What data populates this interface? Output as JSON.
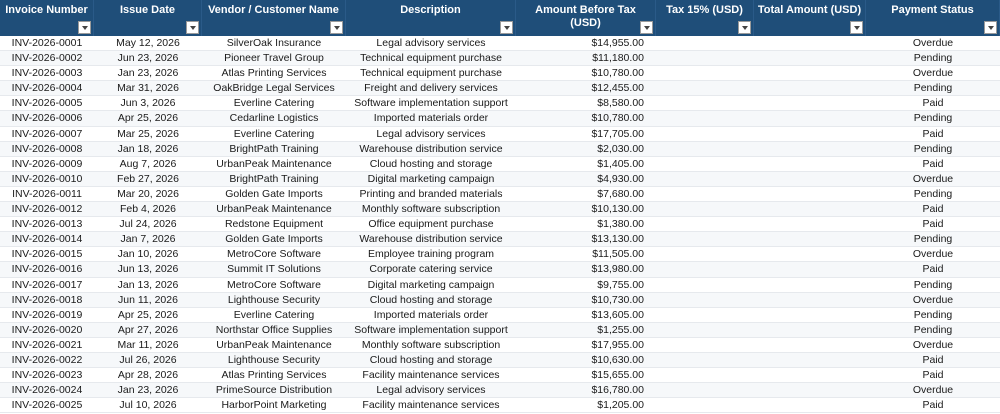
{
  "headers": [
    "Invoice Number",
    "Issue Date",
    "Vendor / Customer Name",
    "Description",
    "Amount Before Tax (USD)",
    "Tax 15% (USD)",
    "Total Amount (USD)",
    "Payment Status"
  ],
  "rows": [
    [
      "INV-2026-0001",
      "May 12, 2026",
      "SilverOak Insurance",
      "Legal advisory services",
      "$14,955.00",
      "",
      "",
      "Overdue"
    ],
    [
      "INV-2026-0002",
      "Jun 23, 2026",
      "Pioneer Travel Group",
      "Technical equipment purchase",
      "$11,180.00",
      "",
      "",
      "Pending"
    ],
    [
      "INV-2026-0003",
      "Jan 23, 2026",
      "Atlas Printing Services",
      "Technical equipment purchase",
      "$10,780.00",
      "",
      "",
      "Overdue"
    ],
    [
      "INV-2026-0004",
      "Mar 31, 2026",
      "OakBridge Legal Services",
      "Freight and delivery services",
      "$12,455.00",
      "",
      "",
      "Pending"
    ],
    [
      "INV-2026-0005",
      "Jun 3, 2026",
      "Everline Catering",
      "Software implementation support",
      "$8,580.00",
      "",
      "",
      "Paid"
    ],
    [
      "INV-2026-0006",
      "Apr 25, 2026",
      "Cedarline Logistics",
      "Imported materials order",
      "$10,780.00",
      "",
      "",
      "Pending"
    ],
    [
      "INV-2026-0007",
      "Mar 25, 2026",
      "Everline Catering",
      "Legal advisory services",
      "$17,705.00",
      "",
      "",
      "Paid"
    ],
    [
      "INV-2026-0008",
      "Jan 18, 2026",
      "BrightPath Training",
      "Warehouse distribution service",
      "$2,030.00",
      "",
      "",
      "Pending"
    ],
    [
      "INV-2026-0009",
      "Aug 7, 2026",
      "UrbanPeak Maintenance",
      "Cloud hosting and storage",
      "$1,405.00",
      "",
      "",
      "Paid"
    ],
    [
      "INV-2026-0010",
      "Feb 27, 2026",
      "BrightPath Training",
      "Digital marketing campaign",
      "$4,930.00",
      "",
      "",
      "Overdue"
    ],
    [
      "INV-2026-0011",
      "Mar 20, 2026",
      "Golden Gate Imports",
      "Printing and branded materials",
      "$7,680.00",
      "",
      "",
      "Pending"
    ],
    [
      "INV-2026-0012",
      "Feb 4, 2026",
      "UrbanPeak Maintenance",
      "Monthly software subscription",
      "$10,130.00",
      "",
      "",
      "Paid"
    ],
    [
      "INV-2026-0013",
      "Jul 24, 2026",
      "Redstone Equipment",
      "Office equipment purchase",
      "$1,380.00",
      "",
      "",
      "Paid"
    ],
    [
      "INV-2026-0014",
      "Jan 7, 2026",
      "Golden Gate Imports",
      "Warehouse distribution service",
      "$13,130.00",
      "",
      "",
      "Pending"
    ],
    [
      "INV-2026-0015",
      "Jan 10, 2026",
      "MetroCore Software",
      "Employee training program",
      "$11,505.00",
      "",
      "",
      "Overdue"
    ],
    [
      "INV-2026-0016",
      "Jun 13, 2026",
      "Summit IT Solutions",
      "Corporate catering service",
      "$13,980.00",
      "",
      "",
      "Paid"
    ],
    [
      "INV-2026-0017",
      "Jan 13, 2026",
      "MetroCore Software",
      "Digital marketing campaign",
      "$9,755.00",
      "",
      "",
      "Pending"
    ],
    [
      "INV-2026-0018",
      "Jun 11, 2026",
      "Lighthouse Security",
      "Cloud hosting and storage",
      "$10,730.00",
      "",
      "",
      "Overdue"
    ],
    [
      "INV-2026-0019",
      "Apr 25, 2026",
      "Everline Catering",
      "Imported materials order",
      "$13,605.00",
      "",
      "",
      "Pending"
    ],
    [
      "INV-2026-0020",
      "Apr 27, 2026",
      "Northstar Office Supplies",
      "Software implementation support",
      "$1,255.00",
      "",
      "",
      "Pending"
    ],
    [
      "INV-2026-0021",
      "Mar 11, 2026",
      "UrbanPeak Maintenance",
      "Monthly software subscription",
      "$17,955.00",
      "",
      "",
      "Overdue"
    ],
    [
      "INV-2026-0022",
      "Jul 26, 2026",
      "Lighthouse Security",
      "Cloud hosting and storage",
      "$10,630.00",
      "",
      "",
      "Paid"
    ],
    [
      "INV-2026-0023",
      "Apr 28, 2026",
      "Atlas Printing Services",
      "Facility maintenance services",
      "$15,655.00",
      "",
      "",
      "Paid"
    ],
    [
      "INV-2026-0024",
      "Jan 23, 2026",
      "PrimeSource Distribution",
      "Legal advisory services",
      "$16,780.00",
      "",
      "",
      "Overdue"
    ],
    [
      "INV-2026-0025",
      "Jul 10, 2026",
      "HarborPoint Marketing",
      "Facility maintenance services",
      "$1,205.00",
      "",
      "",
      "Paid"
    ]
  ],
  "colors": {
    "header_bg": "#1f4e79",
    "header_text": "#ffffff"
  }
}
